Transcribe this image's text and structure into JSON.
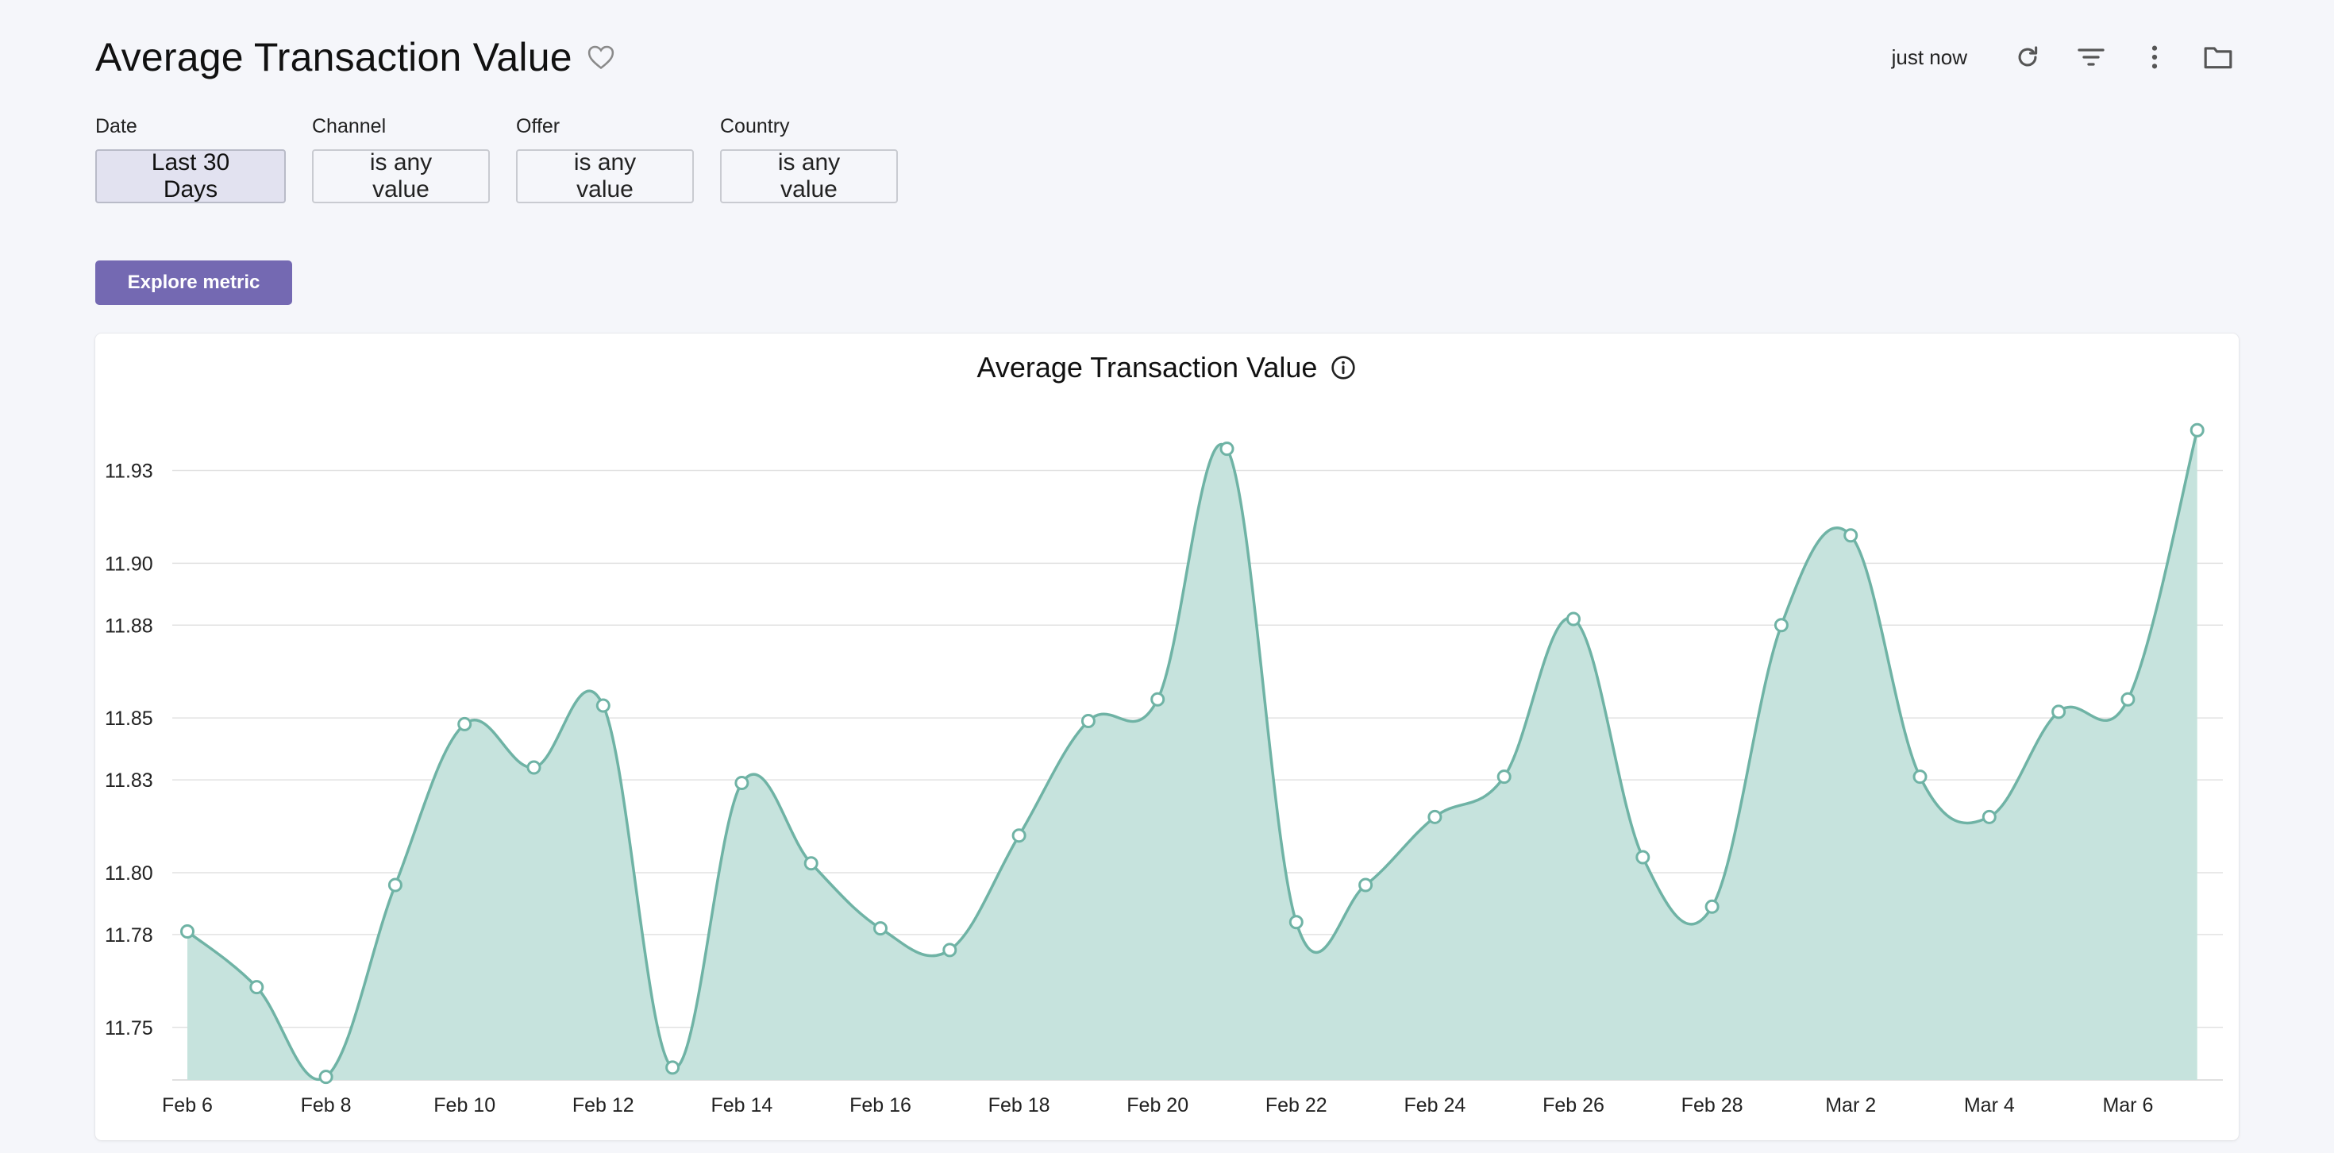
{
  "header": {
    "title": "Average Transaction Value",
    "refresh_status": "just now",
    "icons": [
      "heart-icon",
      "refresh-icon",
      "filter-icon",
      "more-vertical-icon",
      "folder-icon"
    ]
  },
  "filters": [
    {
      "label": "Date",
      "value": "Last 30 Days"
    },
    {
      "label": "Channel",
      "value": "is any value"
    },
    {
      "label": "Offer",
      "value": "is any value"
    },
    {
      "label": "Country",
      "value": "is any value"
    }
  ],
  "explore_button": "Explore metric",
  "colors": {
    "accent": "#7469b2",
    "series_line": "#6fb3a5",
    "series_fill": "#c6e3dd",
    "grid": "#e2e2e2"
  },
  "chart_data": {
    "type": "area",
    "title": "Average Transaction Value",
    "xlabel": "",
    "ylabel": "",
    "x_ticks": [
      "Feb 6",
      "Feb 8",
      "Feb 10",
      "Feb 12",
      "Feb 14",
      "Feb 16",
      "Feb 18",
      "Feb 20",
      "Feb 22",
      "Feb 24",
      "Feb 26",
      "Feb 28",
      "Mar 2",
      "Mar 4",
      "Mar 6"
    ],
    "y_ticks": [
      "11.75",
      "11.78",
      "11.80",
      "11.83",
      "11.85",
      "11.88",
      "11.90",
      "11.93"
    ],
    "ylim": [
      11.733,
      11.945
    ],
    "grid": true,
    "legend": "none",
    "series": [
      {
        "x": [
          "Feb 6",
          "Feb 7",
          "Feb 8",
          "Feb 9",
          "Feb 10",
          "Feb 11",
          "Feb 12",
          "Feb 13",
          "Feb 14",
          "Feb 15",
          "Feb 16",
          "Feb 17",
          "Feb 18",
          "Feb 19",
          "Feb 20",
          "Feb 21",
          "Feb 22",
          "Feb 23",
          "Feb 24",
          "Feb 25",
          "Feb 26",
          "Feb 27",
          "Feb 28",
          "Mar 1",
          "Mar 2",
          "Mar 3",
          "Mar 4",
          "Mar 5",
          "Mar 6",
          "Mar 7"
        ],
        "values": [
          11.781,
          11.763,
          11.734,
          11.796,
          11.848,
          11.834,
          11.854,
          11.737,
          11.829,
          11.803,
          11.782,
          11.775,
          11.812,
          11.849,
          11.856,
          11.937,
          11.784,
          11.796,
          11.818,
          11.831,
          11.882,
          11.805,
          11.789,
          11.88,
          11.909,
          11.831,
          11.818,
          11.852,
          11.856,
          11.943
        ]
      }
    ]
  }
}
